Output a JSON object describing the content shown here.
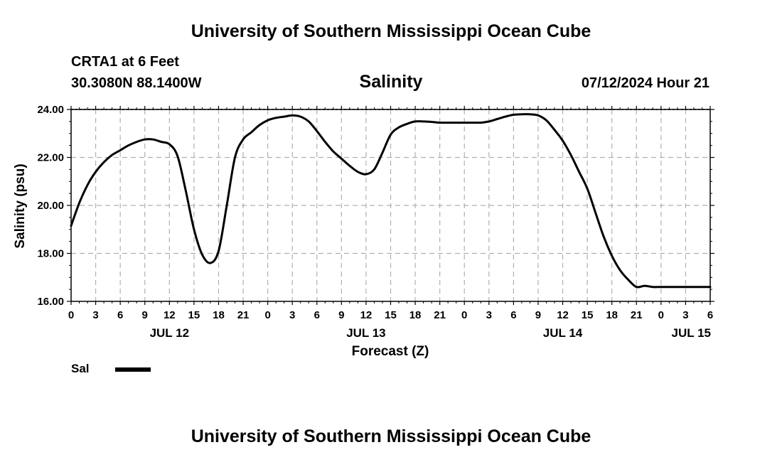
{
  "header": {
    "title": "University of Southern Mississippi Ocean Cube",
    "station": "CRTA1 at 6 Feet",
    "coords": "30.3080N  88.1400W",
    "parameter": "Salinity",
    "datetime": "07/12/2024 Hour 21"
  },
  "footer": {
    "title": "University of Southern Mississippi Ocean Cube"
  },
  "legend": {
    "label": "Sal"
  },
  "colors": {
    "line": "#000000",
    "grid": "#b0b0b0"
  },
  "chart_data": {
    "type": "line",
    "title": "Salinity",
    "xlabel": "Forecast (Z)",
    "ylabel": "Salinity (psu)",
    "ylim": [
      16,
      24
    ],
    "xlim": [
      0,
      78
    ],
    "x_units": "hours since 00Z Jul 12",
    "y_ticks": [
      "16.00",
      "18.00",
      "20.00",
      "22.00",
      "24.00"
    ],
    "y_tick_values": [
      16,
      18,
      20,
      22,
      24
    ],
    "x_tick_labels": [
      "0",
      "3",
      "6",
      "9",
      "12",
      "15",
      "18",
      "21",
      "0",
      "3",
      "6",
      "9",
      "12",
      "15",
      "18",
      "21",
      "0",
      "3",
      "6",
      "9",
      "12",
      "15",
      "18",
      "21",
      "0",
      "3",
      "6"
    ],
    "date_labels": [
      {
        "label": "JUL 12",
        "hour": 12
      },
      {
        "label": "JUL 13",
        "hour": 36
      },
      {
        "label": "JUL 14",
        "hour": 60
      },
      {
        "label": "JUL 15",
        "hour": 78
      }
    ],
    "grid": true,
    "series": [
      {
        "name": "Sal",
        "x": [
          0,
          1,
          2,
          3,
          4,
          5,
          6,
          7,
          8,
          9,
          10,
          11,
          12,
          13,
          14,
          15,
          16,
          17,
          18,
          19,
          20,
          21,
          22,
          23,
          24,
          25,
          26,
          27,
          28,
          29,
          30,
          31,
          32,
          33,
          34,
          35,
          36,
          37,
          38,
          39,
          40,
          41,
          42,
          43,
          44,
          45,
          46,
          47,
          48,
          49,
          50,
          51,
          52,
          53,
          54,
          55,
          56,
          57,
          58,
          59,
          60,
          61,
          62,
          63,
          64,
          65,
          66,
          67,
          68,
          69,
          70,
          71,
          72,
          73,
          74,
          75,
          76,
          77,
          78
        ],
        "values": [
          19.15,
          20.1,
          20.85,
          21.4,
          21.8,
          22.1,
          22.3,
          22.5,
          22.65,
          22.75,
          22.75,
          22.65,
          22.55,
          22.05,
          20.6,
          19.0,
          17.95,
          17.6,
          18.1,
          20.0,
          22.0,
          22.75,
          23.05,
          23.35,
          23.55,
          23.65,
          23.7,
          23.75,
          23.7,
          23.5,
          23.1,
          22.65,
          22.25,
          21.95,
          21.65,
          21.4,
          21.3,
          21.5,
          22.2,
          22.95,
          23.25,
          23.4,
          23.5,
          23.5,
          23.48,
          23.45,
          23.45,
          23.45,
          23.45,
          23.45,
          23.45,
          23.5,
          23.6,
          23.7,
          23.78,
          23.8,
          23.8,
          23.75,
          23.55,
          23.15,
          22.7,
          22.1,
          21.4,
          20.7,
          19.7,
          18.7,
          17.9,
          17.3,
          16.9,
          16.6,
          16.65,
          16.6,
          16.6,
          16.6,
          16.6,
          16.6,
          16.6,
          16.6,
          16.6
        ]
      }
    ]
  }
}
